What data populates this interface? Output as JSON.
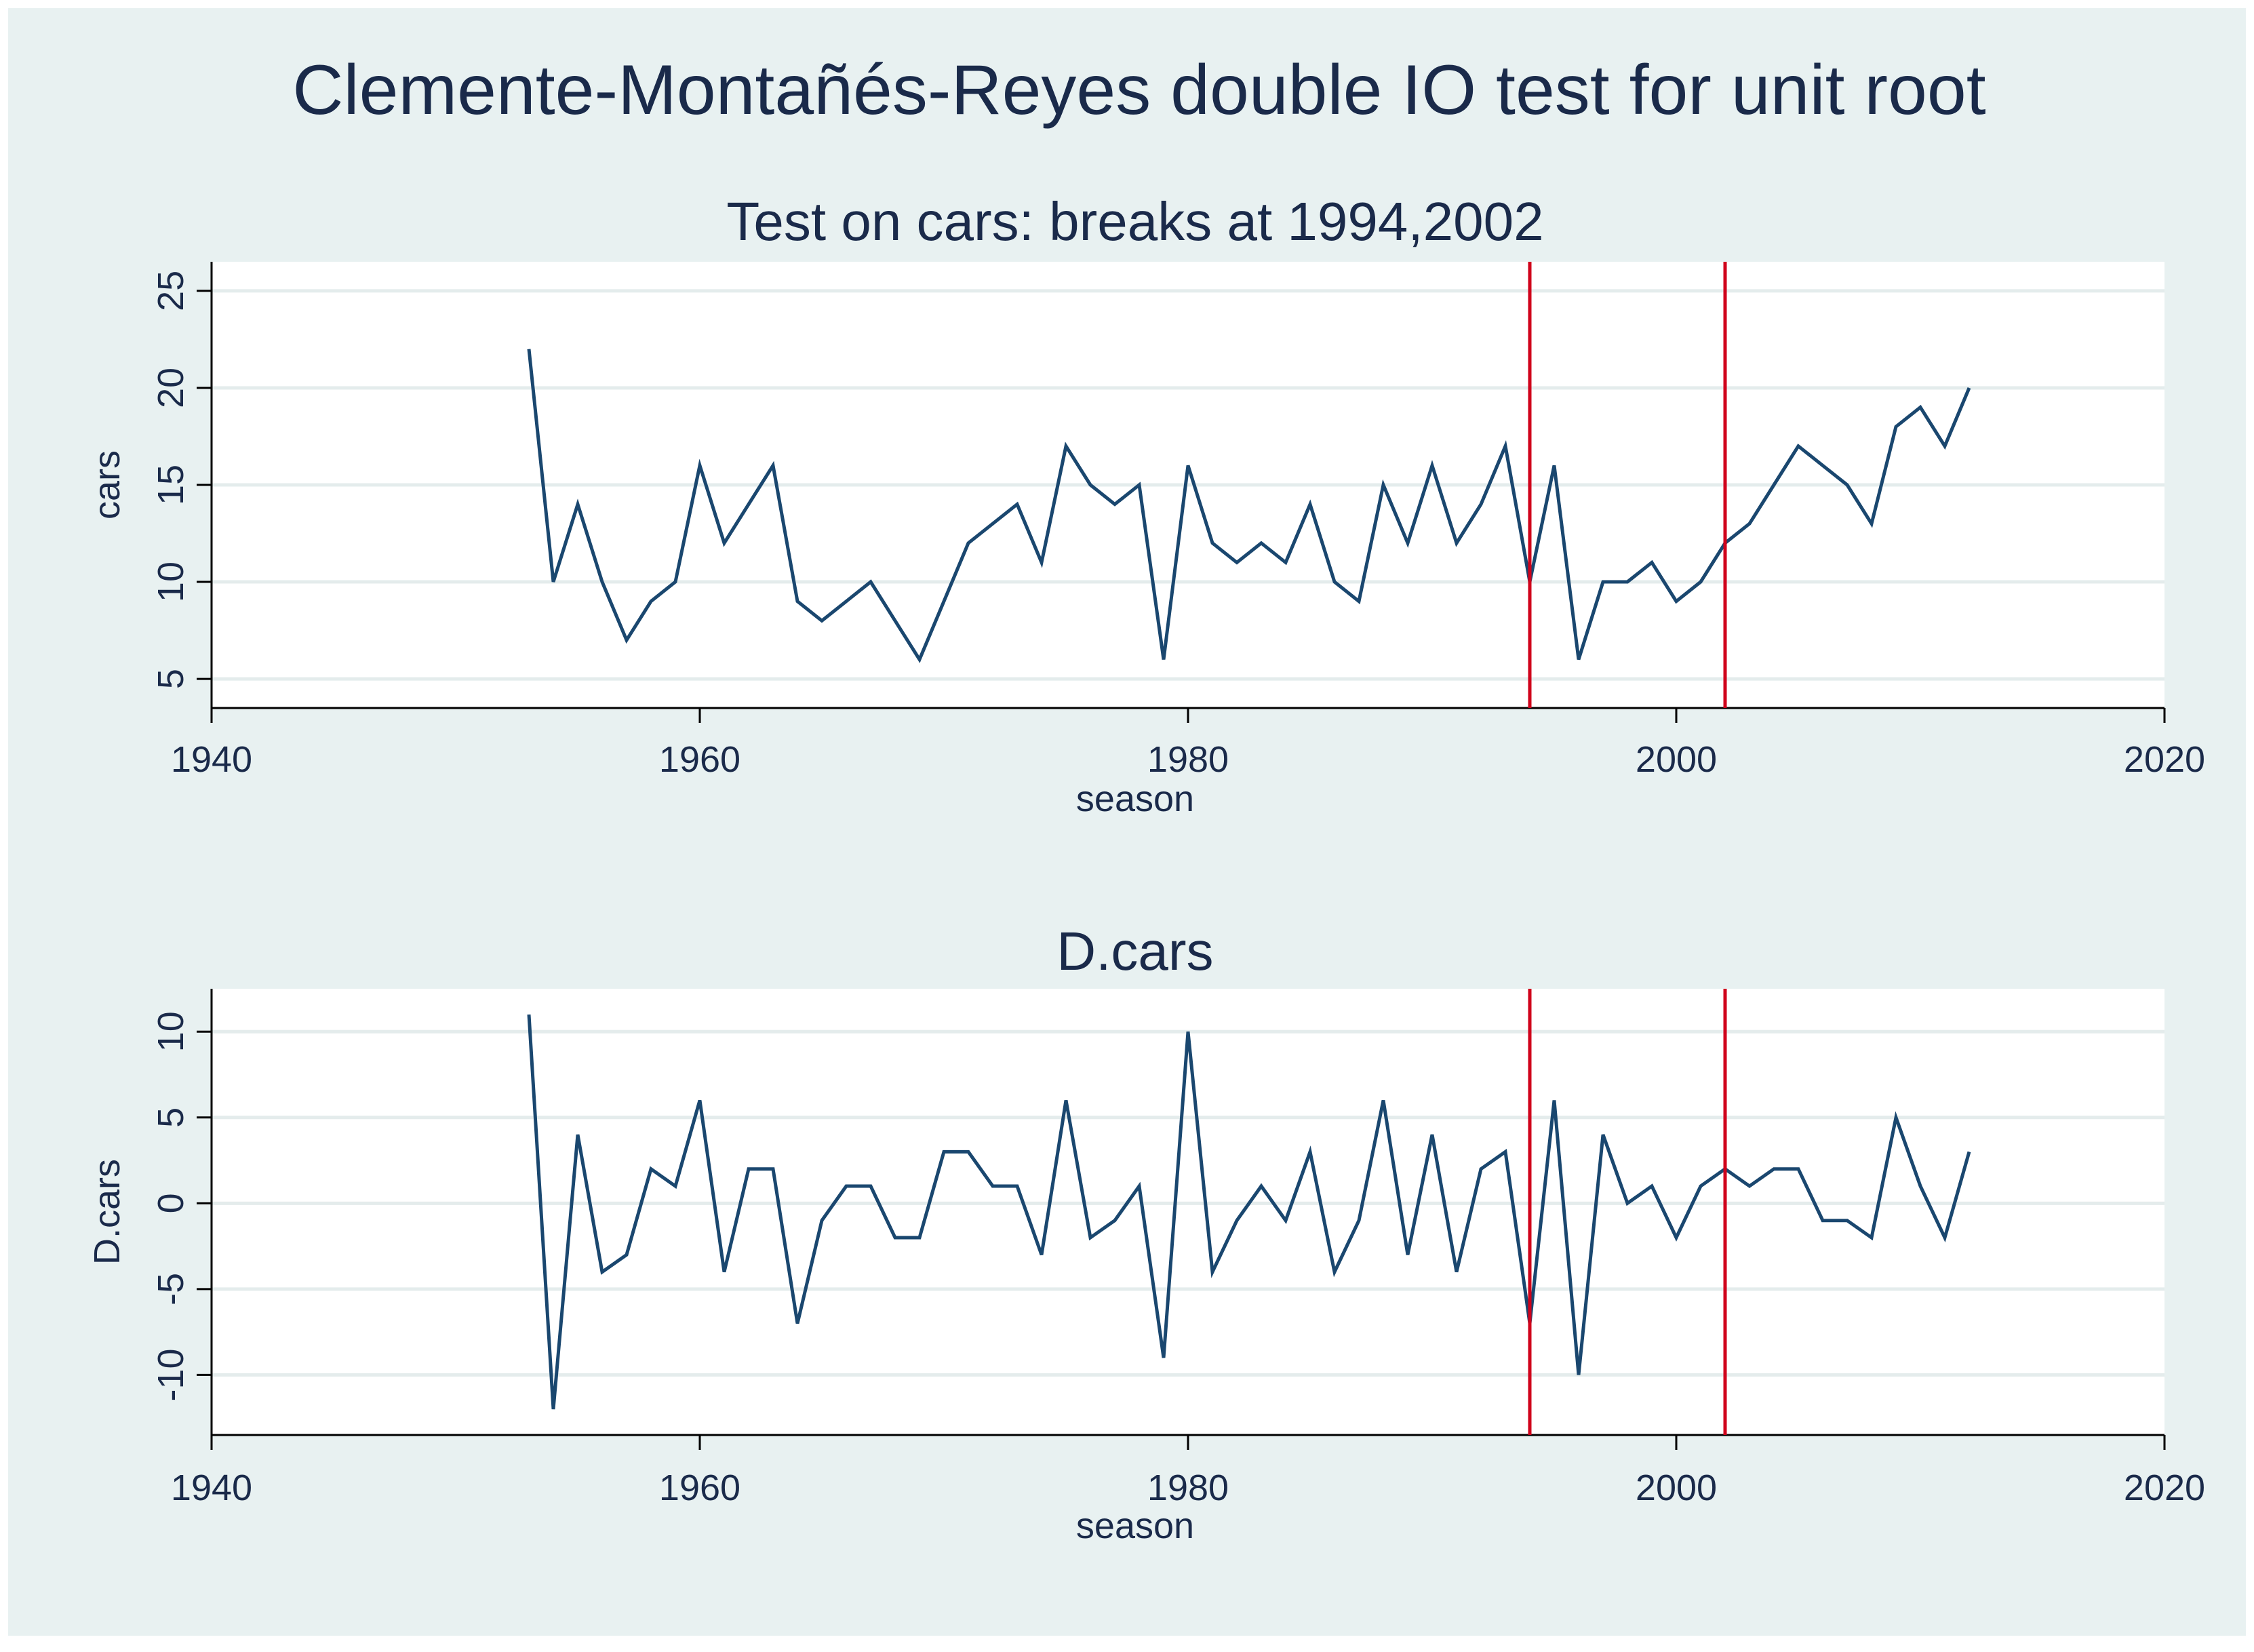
{
  "title": "Clemente-Montañés-Reyes double IO test for unit root",
  "colors": {
    "background": "#ffffff",
    "outer_panel": "#e8f1f1",
    "plot_background": "#ffffff",
    "grid": "#e4ecec",
    "series": "#1a476f",
    "break_line": "#d0021b",
    "text": "#1a2a4a"
  },
  "chart_data": [
    {
      "type": "line",
      "title": "Test on cars: breaks at 1994,2002",
      "xlabel": "season",
      "ylabel": "cars",
      "xlim": [
        1940,
        2020
      ],
      "ylim": [
        3.5,
        26.5
      ],
      "xticks": [
        1940,
        1960,
        1980,
        2000,
        2020
      ],
      "yticks": [
        5,
        10,
        15,
        20,
        25
      ],
      "grid": true,
      "breaks": [
        1994,
        2002
      ],
      "series": [
        {
          "x": [
            1953,
            1954,
            1955,
            1956,
            1957,
            1958,
            1959,
            1960,
            1961,
            1962,
            1963,
            1964,
            1965,
            1966,
            1967,
            1968,
            1969,
            1970,
            1971,
            1972,
            1973,
            1974,
            1975,
            1976,
            1977,
            1978,
            1979,
            1980,
            1981,
            1982,
            1983,
            1984,
            1985,
            1986,
            1987,
            1988,
            1989,
            1990,
            1991,
            1992,
            1993,
            1994,
            1995,
            1996,
            1997,
            1998,
            1999,
            2000,
            2001,
            2002,
            2003,
            2004,
            2005,
            2006,
            2007,
            2008,
            2009,
            2010,
            2011,
            2012
          ],
          "values": [
            22,
            10,
            14,
            10,
            7,
            9,
            10,
            16,
            12,
            14,
            16,
            9,
            8,
            9,
            10,
            8,
            6,
            9,
            12,
            13,
            14,
            11,
            17,
            15,
            14,
            15,
            6,
            16,
            12,
            11,
            12,
            11,
            14,
            10,
            9,
            15,
            12,
            16,
            12,
            14,
            17,
            10,
            16,
            6,
            10,
            10,
            11,
            9,
            10,
            12,
            13,
            15,
            17,
            16,
            15,
            13,
            18,
            19,
            17,
            20
          ]
        }
      ]
    },
    {
      "type": "line",
      "title": "D.cars",
      "xlabel": "season",
      "ylabel": "D.cars",
      "xlim": [
        1940,
        2020
      ],
      "ylim": [
        -13.5,
        12.5
      ],
      "xticks": [
        1940,
        1960,
        1980,
        2000,
        2020
      ],
      "yticks": [
        -10,
        -5,
        0,
        5,
        10
      ],
      "grid": true,
      "breaks": [
        1994,
        2002
      ],
      "series": [
        {
          "x": [
            1953,
            1954,
            1955,
            1956,
            1957,
            1958,
            1959,
            1960,
            1961,
            1962,
            1963,
            1964,
            1965,
            1966,
            1967,
            1968,
            1969,
            1970,
            1971,
            1972,
            1973,
            1974,
            1975,
            1976,
            1977,
            1978,
            1979,
            1980,
            1981,
            1982,
            1983,
            1984,
            1985,
            1986,
            1987,
            1988,
            1989,
            1990,
            1991,
            1992,
            1993,
            1994,
            1995,
            1996,
            1997,
            1998,
            1999,
            2000,
            2001,
            2002,
            2003,
            2004,
            2005,
            2006,
            2007,
            2008,
            2009,
            2010,
            2011,
            2012
          ],
          "values": [
            11,
            -12,
            4,
            -4,
            -3,
            2,
            1,
            6,
            -4,
            2,
            2,
            -7,
            -1,
            1,
            1,
            -2,
            -2,
            3,
            3,
            1,
            1,
            -3,
            6,
            -2,
            -1,
            1,
            -9,
            10,
            -4,
            -1,
            1,
            -1,
            3,
            -4,
            -1,
            6,
            -3,
            4,
            -4,
            2,
            3,
            -7,
            6,
            -10,
            4,
            0,
            1,
            -2,
            1,
            2,
            1,
            2,
            2,
            -1,
            -1,
            -2,
            5,
            1,
            -2,
            3
          ]
        }
      ]
    }
  ]
}
